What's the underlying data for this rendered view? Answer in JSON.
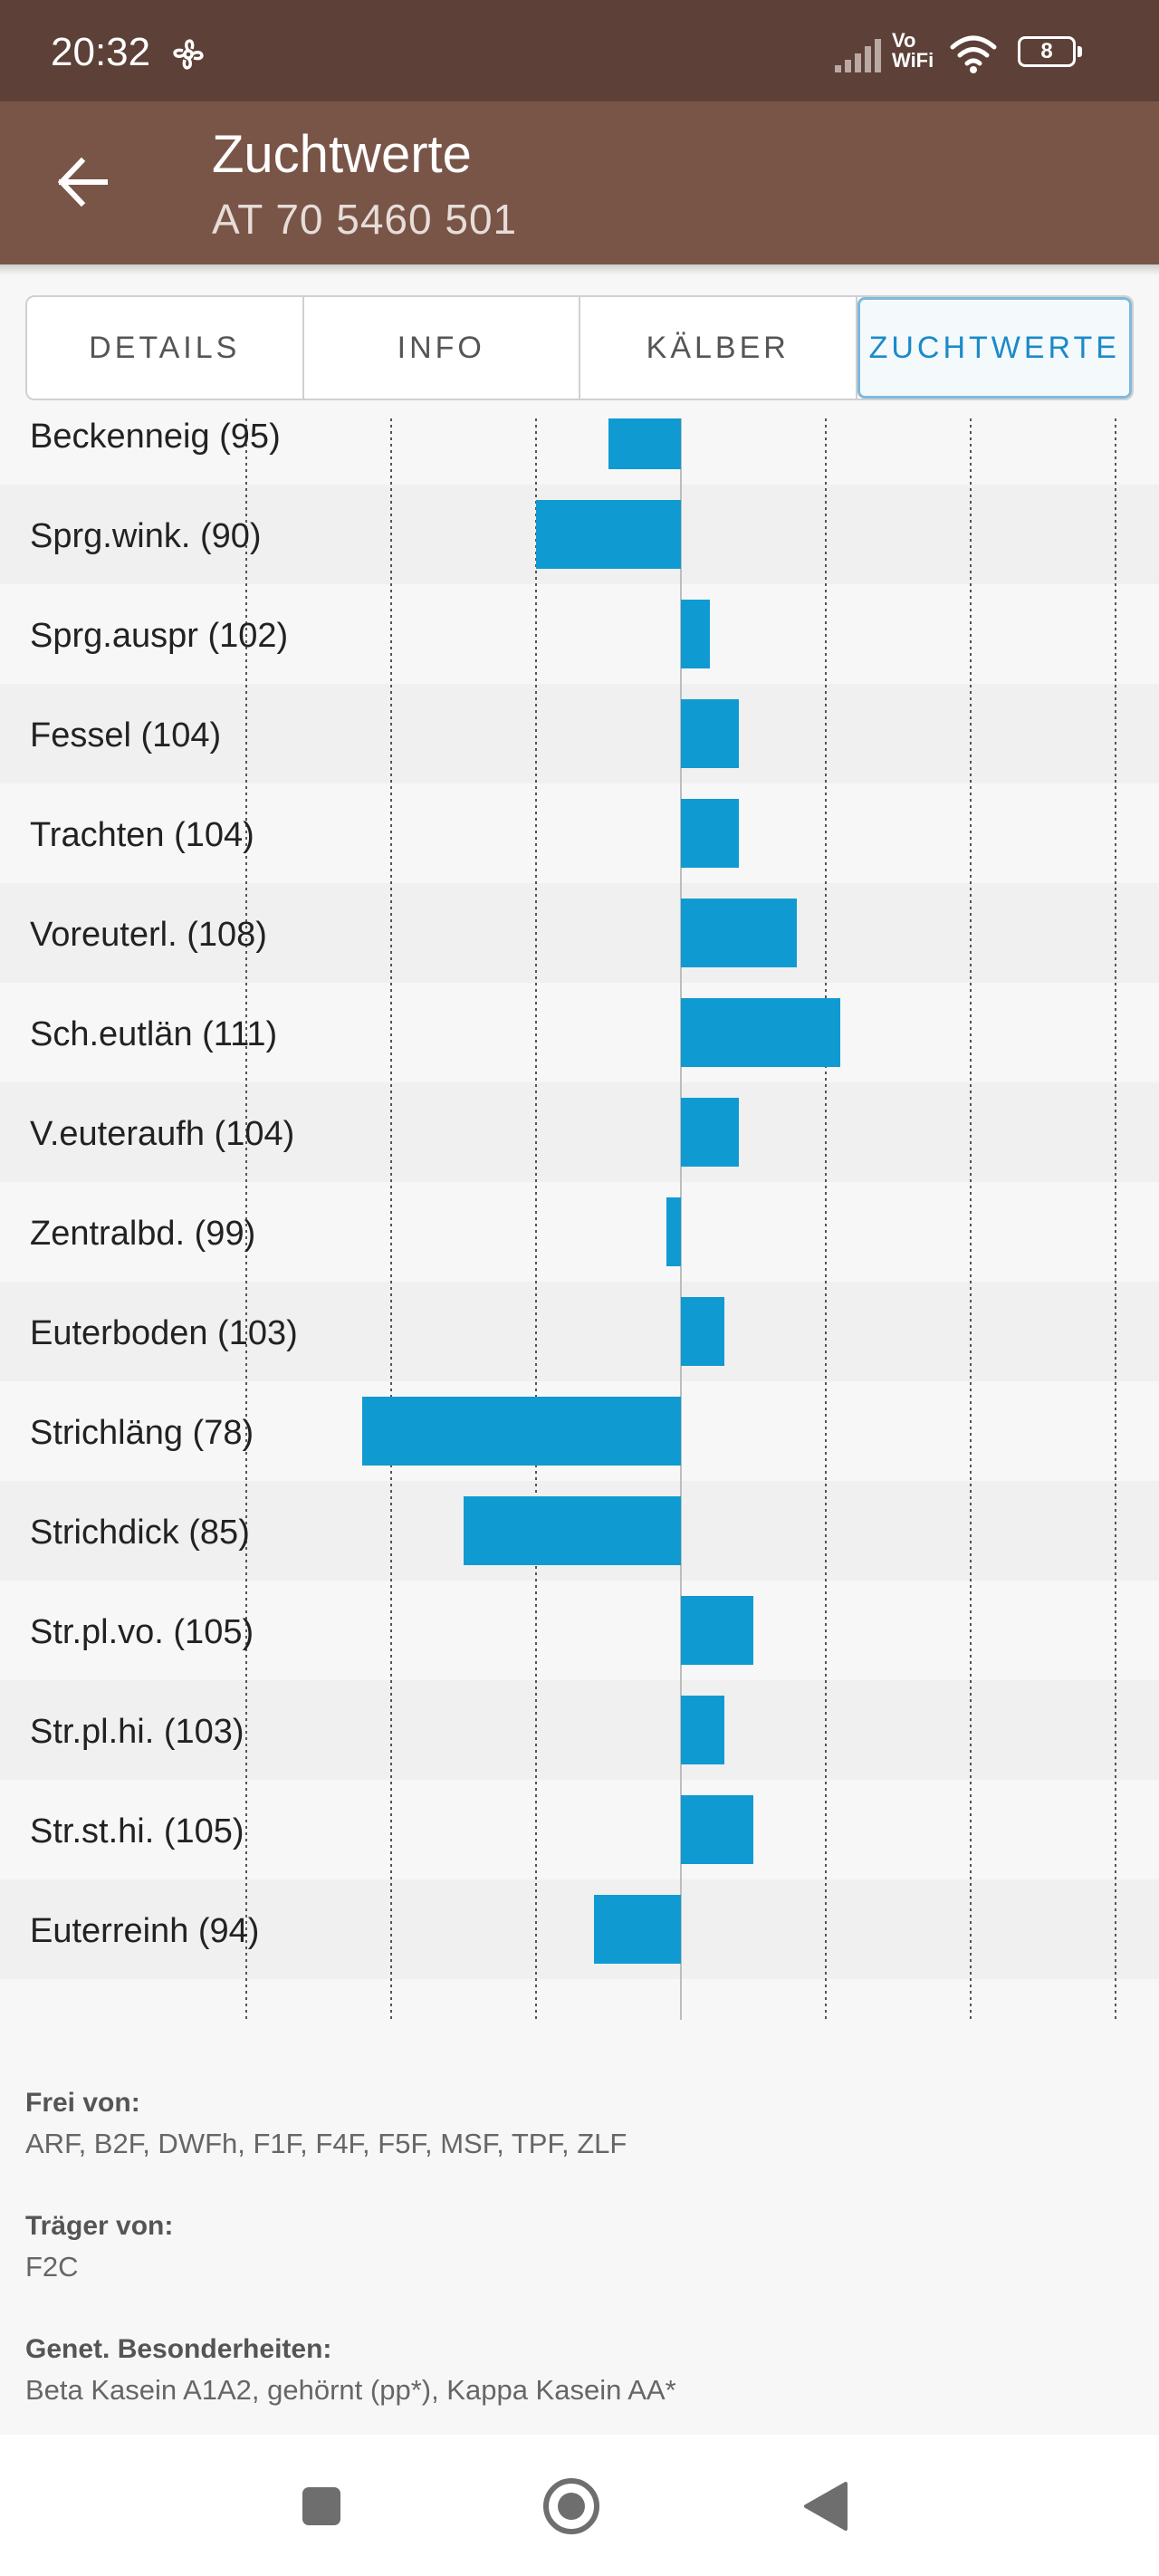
{
  "status_bar": {
    "time": "20:32",
    "network_label": "Vo\nWiFi",
    "battery_level": "8",
    "icons": [
      "fan-icon",
      "signal-icon",
      "wifi-icon",
      "battery-icon"
    ]
  },
  "app_bar": {
    "title": "Zuchtwerte",
    "subtitle": "AT 70 5460 501",
    "back_icon": "arrow-left-icon"
  },
  "tabs": [
    {
      "label": "DETAILS",
      "active": false
    },
    {
      "label": "INFO",
      "active": false
    },
    {
      "label": "KÄLBER",
      "active": false
    },
    {
      "label": "ZUCHTWERTE",
      "active": true
    }
  ],
  "chart_data": {
    "type": "bar",
    "orientation": "horizontal",
    "baseline": 100,
    "xlim": [
      60,
      140
    ],
    "gridlines": [
      70,
      80,
      90,
      100,
      110,
      120,
      130
    ],
    "categories": [
      "Beckenneig (95)",
      "Sprg.wink. (90)",
      "Sprg.auspr (102)",
      "Fessel (104)",
      "Trachten (104)",
      "Voreuterl. (108)",
      "Sch.eutlän (111)",
      "V.euteraufh (104)",
      "Zentralbd. (99)",
      "Euterboden (103)",
      "Strichläng (78)",
      "Strichdick (85)",
      "Str.pl.vo. (105)",
      "Str.pl.hi. (103)",
      "Str.st.hi. (105)",
      "Euterreinh (94)"
    ],
    "values": [
      95,
      90,
      102,
      104,
      104,
      108,
      111,
      104,
      99,
      103,
      78,
      85,
      105,
      103,
      105,
      94
    ],
    "bar_color": "#0f9bd2",
    "grid": true
  },
  "info": [
    {
      "label": "Frei von:",
      "value": "ARF, B2F, DWFh, F1F, F4F, F5F, MSF, TPF, ZLF"
    },
    {
      "label": "Träger von:",
      "value": "F2C"
    },
    {
      "label": "Genet. Besonderheiten:",
      "value": "Beta Kasein A1A2, gehörnt (pp*), Kappa Kasein AA*"
    }
  ],
  "nav_bar": {
    "icons": [
      "recents-square-icon",
      "home-circle-icon",
      "back-triangle-icon"
    ]
  }
}
